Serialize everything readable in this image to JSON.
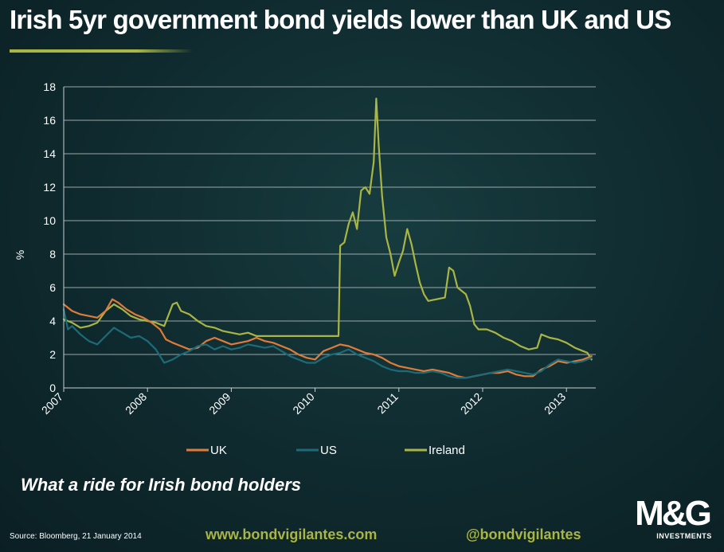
{
  "header": {
    "title": "Irish 5yr government bond yields lower than UK and US"
  },
  "subtitle": "What a ride for Irish bond holders",
  "footer": {
    "source": "Source: Bloomberg, 21 January 2014",
    "website": "www.bondvigilantes.com",
    "twitter": "@bondvigilantes"
  },
  "logo": {
    "mark": "M&G",
    "subtext": "INVESTMENTS"
  },
  "colors": {
    "uk": "#e07b39",
    "us": "#1d6b78",
    "ireland": "#a9b544",
    "grid": "#c8d0d0",
    "axis_text": "#ffffff"
  },
  "chart_data": {
    "type": "line",
    "title": "Irish 5yr government bond yields lower than UK and US",
    "xlabel": "",
    "ylabel": "%",
    "xlim": [
      2007.0,
      2013.35
    ],
    "ylim": [
      0,
      18
    ],
    "yticks": [
      0,
      2,
      4,
      6,
      8,
      10,
      12,
      14,
      16,
      18
    ],
    "xticks": [
      "2007",
      "2008",
      "2009",
      "2010",
      "2011",
      "2012",
      "2013"
    ],
    "grid": true,
    "legend_position": "bottom",
    "series": [
      {
        "name": "UK",
        "points": [
          [
            2007.0,
            5.0
          ],
          [
            2007.1,
            4.6
          ],
          [
            2007.2,
            4.4
          ],
          [
            2007.3,
            4.3
          ],
          [
            2007.4,
            4.2
          ],
          [
            2007.5,
            4.6
          ],
          [
            2007.58,
            5.3
          ],
          [
            2007.65,
            5.1
          ],
          [
            2007.75,
            4.7
          ],
          [
            2007.85,
            4.4
          ],
          [
            2007.95,
            4.2
          ],
          [
            2008.05,
            3.9
          ],
          [
            2008.15,
            3.5
          ],
          [
            2008.22,
            2.9
          ],
          [
            2008.3,
            2.7
          ],
          [
            2008.4,
            2.5
          ],
          [
            2008.5,
            2.3
          ],
          [
            2008.6,
            2.4
          ],
          [
            2008.7,
            2.8
          ],
          [
            2008.8,
            3.0
          ],
          [
            2008.9,
            2.8
          ],
          [
            2009.0,
            2.6
          ],
          [
            2009.1,
            2.7
          ],
          [
            2009.2,
            2.8
          ],
          [
            2009.3,
            3.0
          ],
          [
            2009.4,
            2.8
          ],
          [
            2009.5,
            2.7
          ],
          [
            2009.6,
            2.5
          ],
          [
            2009.7,
            2.3
          ],
          [
            2009.8,
            2.0
          ],
          [
            2009.9,
            1.8
          ],
          [
            2010.0,
            1.7
          ],
          [
            2010.1,
            2.2
          ],
          [
            2010.2,
            2.4
          ],
          [
            2010.3,
            2.6
          ],
          [
            2010.4,
            2.5
          ],
          [
            2010.5,
            2.3
          ],
          [
            2010.6,
            2.1
          ],
          [
            2010.7,
            2.0
          ],
          [
            2010.8,
            1.8
          ],
          [
            2010.9,
            1.5
          ],
          [
            2011.0,
            1.3
          ],
          [
            2011.1,
            1.2
          ],
          [
            2011.2,
            1.1
          ],
          [
            2011.3,
            1.0
          ],
          [
            2011.4,
            1.1
          ],
          [
            2011.5,
            1.0
          ],
          [
            2011.6,
            0.9
          ],
          [
            2011.7,
            0.7
          ],
          [
            2011.8,
            0.6
          ],
          [
            2011.9,
            0.7
          ],
          [
            2012.0,
            0.8
          ],
          [
            2012.1,
            0.9
          ],
          [
            2012.2,
            0.9
          ],
          [
            2012.3,
            1.0
          ],
          [
            2012.4,
            0.8
          ],
          [
            2012.5,
            0.7
          ],
          [
            2012.6,
            0.7
          ],
          [
            2012.7,
            1.1
          ],
          [
            2012.8,
            1.3
          ],
          [
            2012.9,
            1.6
          ],
          [
            2013.0,
            1.5
          ],
          [
            2013.1,
            1.6
          ],
          [
            2013.2,
            1.7
          ],
          [
            2013.3,
            1.9
          ]
        ]
      },
      {
        "name": "US",
        "points": [
          [
            2007.0,
            4.7
          ],
          [
            2007.05,
            3.5
          ],
          [
            2007.1,
            3.7
          ],
          [
            2007.2,
            3.2
          ],
          [
            2007.3,
            2.8
          ],
          [
            2007.4,
            2.6
          ],
          [
            2007.5,
            3.1
          ],
          [
            2007.6,
            3.6
          ],
          [
            2007.7,
            3.3
          ],
          [
            2007.8,
            3.0
          ],
          [
            2007.9,
            3.1
          ],
          [
            2008.0,
            2.8
          ],
          [
            2008.1,
            2.3
          ],
          [
            2008.2,
            1.5
          ],
          [
            2008.3,
            1.7
          ],
          [
            2008.4,
            2.0
          ],
          [
            2008.5,
            2.2
          ],
          [
            2008.6,
            2.5
          ],
          [
            2008.7,
            2.6
          ],
          [
            2008.8,
            2.3
          ],
          [
            2008.9,
            2.5
          ],
          [
            2009.0,
            2.3
          ],
          [
            2009.1,
            2.4
          ],
          [
            2009.2,
            2.6
          ],
          [
            2009.3,
            2.5
          ],
          [
            2009.4,
            2.4
          ],
          [
            2009.5,
            2.5
          ],
          [
            2009.6,
            2.2
          ],
          [
            2009.7,
            1.9
          ],
          [
            2009.8,
            1.7
          ],
          [
            2009.9,
            1.5
          ],
          [
            2010.0,
            1.5
          ],
          [
            2010.1,
            1.8
          ],
          [
            2010.2,
            2.0
          ],
          [
            2010.3,
            2.1
          ],
          [
            2010.4,
            2.3
          ],
          [
            2010.5,
            2.0
          ],
          [
            2010.6,
            1.8
          ],
          [
            2010.7,
            1.6
          ],
          [
            2010.8,
            1.3
          ],
          [
            2010.9,
            1.1
          ],
          [
            2011.0,
            1.0
          ],
          [
            2011.1,
            1.0
          ],
          [
            2011.2,
            0.9
          ],
          [
            2011.3,
            0.9
          ],
          [
            2011.4,
            1.0
          ],
          [
            2011.5,
            0.9
          ],
          [
            2011.6,
            0.7
          ],
          [
            2011.7,
            0.6
          ],
          [
            2011.8,
            0.6
          ],
          [
            2011.9,
            0.7
          ],
          [
            2012.0,
            0.8
          ],
          [
            2012.1,
            0.9
          ],
          [
            2012.2,
            1.0
          ],
          [
            2012.3,
            1.1
          ],
          [
            2012.4,
            1.0
          ],
          [
            2012.5,
            0.9
          ],
          [
            2012.6,
            0.8
          ],
          [
            2012.7,
            1.0
          ],
          [
            2012.8,
            1.4
          ],
          [
            2012.9,
            1.7
          ],
          [
            2013.0,
            1.6
          ],
          [
            2013.1,
            1.5
          ],
          [
            2013.2,
            1.6
          ],
          [
            2013.3,
            1.8
          ]
        ]
      },
      {
        "name": "Ireland",
        "points": [
          [
            2007.0,
            4.1
          ],
          [
            2007.1,
            3.9
          ],
          [
            2007.2,
            3.6
          ],
          [
            2007.3,
            3.7
          ],
          [
            2007.4,
            3.9
          ],
          [
            2007.5,
            4.6
          ],
          [
            2007.6,
            5.0
          ],
          [
            2007.7,
            4.7
          ],
          [
            2007.8,
            4.3
          ],
          [
            2007.9,
            4.1
          ],
          [
            2008.0,
            4.0
          ],
          [
            2008.1,
            3.9
          ],
          [
            2008.2,
            3.7
          ],
          [
            2008.3,
            5.0
          ],
          [
            2008.35,
            5.1
          ],
          [
            2008.4,
            4.6
          ],
          [
            2008.5,
            4.4
          ],
          [
            2008.6,
            4.0
          ],
          [
            2008.7,
            3.7
          ],
          [
            2008.8,
            3.6
          ],
          [
            2008.9,
            3.4
          ],
          [
            2009.0,
            3.3
          ],
          [
            2009.1,
            3.2
          ],
          [
            2009.2,
            3.3
          ],
          [
            2009.3,
            3.1
          ],
          [
            2009.5,
            3.1
          ],
          [
            2009.7,
            3.1
          ],
          [
            2009.9,
            3.1
          ],
          [
            2010.1,
            3.1
          ],
          [
            2010.28,
            3.1
          ],
          [
            2010.3,
            8.5
          ],
          [
            2010.35,
            8.7
          ],
          [
            2010.4,
            9.8
          ],
          [
            2010.45,
            10.5
          ],
          [
            2010.5,
            9.5
          ],
          [
            2010.55,
            11.8
          ],
          [
            2010.6,
            12.0
          ],
          [
            2010.65,
            11.6
          ],
          [
            2010.7,
            13.5
          ],
          [
            2010.73,
            17.3
          ],
          [
            2010.76,
            14.5
          ],
          [
            2010.8,
            11.5
          ],
          [
            2010.85,
            9.0
          ],
          [
            2010.9,
            8.0
          ],
          [
            2010.95,
            6.7
          ],
          [
            2011.0,
            7.5
          ],
          [
            2011.05,
            8.2
          ],
          [
            2011.1,
            9.5
          ],
          [
            2011.15,
            8.6
          ],
          [
            2011.2,
            7.4
          ],
          [
            2011.25,
            6.3
          ],
          [
            2011.3,
            5.6
          ],
          [
            2011.35,
            5.2
          ],
          [
            2011.45,
            5.3
          ],
          [
            2011.55,
            5.4
          ],
          [
            2011.6,
            7.2
          ],
          [
            2011.65,
            7.0
          ],
          [
            2011.7,
            6.0
          ],
          [
            2011.8,
            5.6
          ],
          [
            2011.85,
            4.9
          ],
          [
            2011.9,
            3.8
          ],
          [
            2011.95,
            3.5
          ],
          [
            2012.05,
            3.5
          ],
          [
            2012.15,
            3.3
          ],
          [
            2012.25,
            3.0
          ],
          [
            2012.35,
            2.8
          ],
          [
            2012.45,
            2.5
          ],
          [
            2012.55,
            2.3
          ],
          [
            2012.65,
            2.4
          ],
          [
            2012.7,
            3.2
          ],
          [
            2012.8,
            3.0
          ],
          [
            2012.9,
            2.9
          ],
          [
            2013.0,
            2.7
          ],
          [
            2013.1,
            2.4
          ],
          [
            2013.2,
            2.2
          ],
          [
            2013.25,
            2.1
          ],
          [
            2013.3,
            1.7
          ]
        ]
      }
    ]
  }
}
